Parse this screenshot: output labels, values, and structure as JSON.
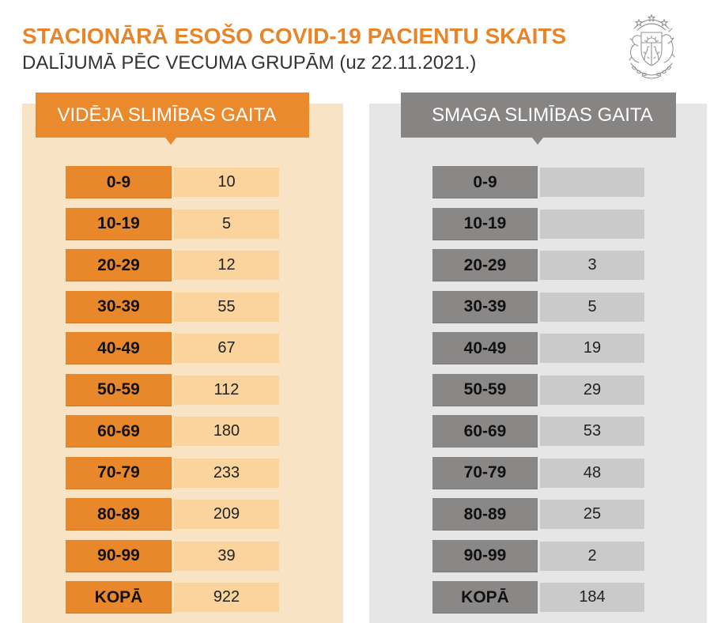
{
  "chart_data": {
    "type": "table",
    "title": "STACIONĀRĀ ESOŠO COVID-19 PACIENTU SKAITS",
    "subtitle": "DALĪJUMĀ PĒC VECUMA GRUPĀM (uz 22.11.2021.)",
    "categories": [
      "0-9",
      "10-19",
      "20-29",
      "30-39",
      "40-49",
      "50-59",
      "60-69",
      "70-79",
      "80-89",
      "90-99",
      "KOPĀ"
    ],
    "series": [
      {
        "name": "VIDĒJA SLIMĪBAS GAITA",
        "values": [
          10,
          5,
          12,
          55,
          67,
          112,
          180,
          233,
          209,
          39,
          922
        ]
      },
      {
        "name": "SMAGA SLIMĪBAS GAITA",
        "values": [
          null,
          null,
          3,
          5,
          19,
          29,
          53,
          48,
          25,
          2,
          184
        ]
      }
    ]
  },
  "emblem": {
    "icon": "latvia-coat-of-arms-icon"
  },
  "colors": {
    "title": "#e8852a",
    "subtitle": "#333333",
    "label_text": "#111111",
    "moderate_accent": "#ea8a2d",
    "moderate_panel": "#f9e3c5",
    "moderate_label": "#e9872b",
    "moderate_value": "#fbd49d",
    "severe_accent": "#878484",
    "severe_panel": "#e7e6e6",
    "severe_label": "#8a8787",
    "severe_value": "#cbcaca"
  }
}
